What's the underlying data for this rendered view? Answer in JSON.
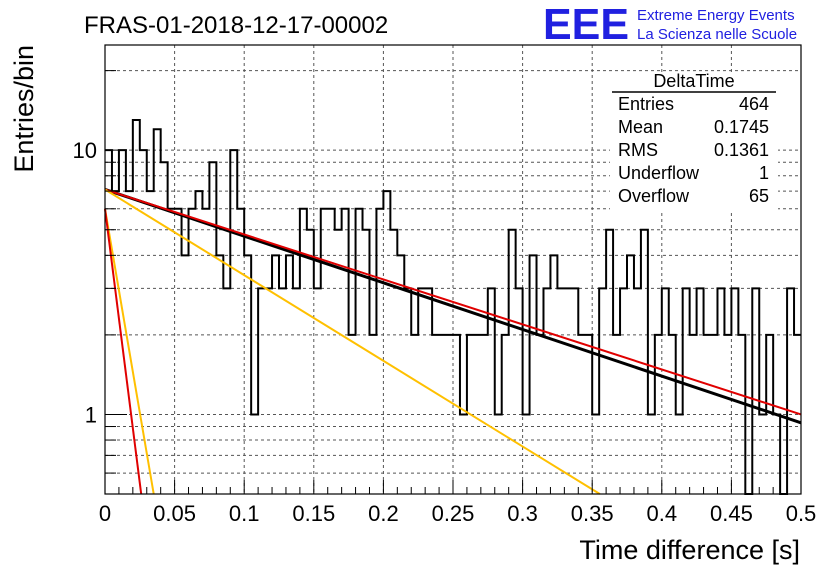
{
  "chart_data": {
    "type": "histogram",
    "title": "FRAS-01-2018-12-17-00002",
    "xlabel": "Time difference [s]",
    "ylabel": "Entries/bin",
    "xlim": [
      0,
      0.5
    ],
    "ylim": [
      0.5,
      25
    ],
    "yscale": "log",
    "grid": true,
    "x_ticks": [
      "0",
      "0.05",
      "0.1",
      "0.15",
      "0.2",
      "0.25",
      "0.3",
      "0.35",
      "0.4",
      "0.45",
      "0.5"
    ],
    "y_ticks": [
      "1",
      "10"
    ],
    "bin_width": 0.005,
    "bin_counts": [
      10,
      7,
      10,
      7,
      13,
      10,
      7,
      12,
      9,
      6,
      6,
      4,
      6,
      7,
      6,
      9,
      4,
      3,
      10,
      6,
      4,
      1,
      3,
      3,
      4,
      3,
      4,
      3,
      6,
      5,
      3,
      6,
      6,
      5,
      6,
      2,
      6,
      5,
      2,
      6,
      7,
      5,
      4,
      3,
      2,
      3,
      3,
      2,
      2,
      2,
      2,
      1,
      2,
      2,
      2,
      3,
      1,
      2,
      5,
      3,
      1,
      4,
      2,
      3,
      4,
      3,
      3,
      3,
      2,
      2,
      1,
      3,
      5,
      2,
      3,
      4,
      3,
      5,
      1,
      2,
      3,
      2,
      1,
      3,
      2,
      3,
      2,
      2,
      3,
      2,
      3,
      2,
      0.3,
      3,
      1,
      2,
      1,
      0.3,
      3,
      2
    ],
    "fits": [
      {
        "color": "#000000",
        "y0": 7.1,
        "y1": 0.93
      },
      {
        "color": "#e00000",
        "y0": 7.1,
        "y1": 1.0
      },
      {
        "color": "#ffc000",
        "y0": 7.1,
        "y1": 0.17
      },
      {
        "color": "#ffc000",
        "y0": 6.0,
        "y1": 0.5,
        "x1": 0.035
      },
      {
        "color": "#e00000",
        "y0": 6.0,
        "y1": 0.5,
        "x1": 0.026
      }
    ],
    "stats": {
      "name": "DeltaTime",
      "rows": [
        {
          "label": "Entries",
          "value": "464"
        },
        {
          "label": "Mean",
          "value": "0.1745"
        },
        {
          "label": "RMS",
          "value": "0.1361"
        },
        {
          "label": "Underflow",
          "value": "1"
        },
        {
          "label": "Overflow",
          "value": "65"
        }
      ]
    }
  },
  "logo": {
    "text": "EEE",
    "line1": "Extreme Energy Events",
    "line2": "La Scienza nelle Scuole",
    "color": "#2020e0"
  }
}
